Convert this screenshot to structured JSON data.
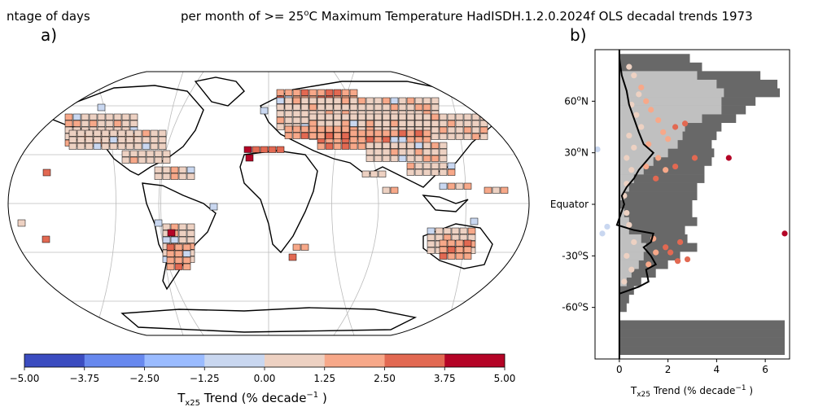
{
  "title_left": "ntage of days",
  "title_right": "per month of >= 25",
  "title_sup": "o",
  "title_rest": "C Maximum Temperature HadISDH.1.2.0.2024f OLS decadal trends 1973",
  "panel_a_label": "a)",
  "panel_b_label": "b)",
  "colorbar": {
    "label_main": "T",
    "label_sub": "x25",
    "label_rest": " Trend (% decade",
    "label_sup": "−1",
    "label_end": " )",
    "tick_labels": [
      "−5.00",
      "−3.75",
      "−2.50",
      "−1.25",
      "0.00",
      "1.25",
      "2.50",
      "3.75",
      "5.00"
    ],
    "colors": [
      "#3b4cc0",
      "#6788ee",
      "#9abbff",
      "#c9d7f0",
      "#edd1c2",
      "#f7a889",
      "#e26952",
      "#b40426"
    ]
  },
  "chart_data": [
    {
      "type": "map",
      "description_values": "Gridded decadal trends of days >= 25C max temperature; land boxes shaded by trend bin",
      "value_range": [
        -5.0,
        5.0
      ],
      "bins": [
        -5.0,
        -3.75,
        -2.5,
        -1.25,
        0.0,
        1.25,
        2.5,
        3.75,
        5.0
      ]
    },
    {
      "type": "scatter",
      "xlabel_main": "T",
      "xlabel_sub": "x25",
      "xlabel_rest": " Trend (% decade",
      "xlabel_sup": "−1",
      "xlabel_end": " )",
      "xlim": [
        -1,
        7
      ],
      "ylim": [
        -90,
        90
      ],
      "x_ticks": [
        0,
        2,
        4,
        6
      ],
      "x_tick_labels": [
        "0",
        "2",
        "4",
        "6"
      ],
      "y_ticks": [
        60,
        30,
        0,
        -30,
        -60
      ],
      "y_tick_labels": [
        {
          "num": "60",
          "sup": "o",
          "suf": "N"
        },
        {
          "num": "30",
          "sup": "o",
          "suf": "N"
        },
        {
          "num": "Equator",
          "sup": "",
          "suf": ""
        },
        {
          "num": "-30",
          "sup": "o",
          "suf": "S"
        },
        {
          "num": "-60",
          "sup": "o",
          "suf": "S"
        }
      ],
      "coverage_dark": [
        {
          "lat": 85,
          "x": 2.9
        },
        {
          "lat": 80,
          "x": 3.4
        },
        {
          "lat": 75,
          "x": 5.8
        },
        {
          "lat": 70,
          "x": 6.5
        },
        {
          "lat": 65,
          "x": 6.6
        },
        {
          "lat": 60,
          "x": 5.6
        },
        {
          "lat": 55,
          "x": 5.2
        },
        {
          "lat": 50,
          "x": 4.8
        },
        {
          "lat": 45,
          "x": 4.2
        },
        {
          "lat": 40,
          "x": 4.0
        },
        {
          "lat": 35,
          "x": 3.8
        },
        {
          "lat": 30,
          "x": 3.9
        },
        {
          "lat": 25,
          "x": 3.8
        },
        {
          "lat": 20,
          "x": 3.5
        },
        {
          "lat": 15,
          "x": 3.5
        },
        {
          "lat": 10,
          "x": 3.2
        },
        {
          "lat": 5,
          "x": 3.2
        },
        {
          "lat": 0,
          "x": 3.0
        },
        {
          "lat": -5,
          "x": 3.0
        },
        {
          "lat": -10,
          "x": 3.2
        },
        {
          "lat": -15,
          "x": 2.7
        },
        {
          "lat": -20,
          "x": 2.8
        },
        {
          "lat": -25,
          "x": 3.2
        },
        {
          "lat": -30,
          "x": 2.5
        },
        {
          "lat": -35,
          "x": 2.0
        },
        {
          "lat": -40,
          "x": 1.5
        },
        {
          "lat": -45,
          "x": 0.9
        },
        {
          "lat": -50,
          "x": 0.6
        },
        {
          "lat": -55,
          "x": 0.4
        },
        {
          "lat": -60,
          "x": 0.3
        },
        {
          "lat": -65,
          "x": 0.0
        },
        {
          "lat": -70,
          "x": 6.8
        },
        {
          "lat": -75,
          "x": 6.8
        },
        {
          "lat": -80,
          "x": 6.8
        },
        {
          "lat": -85,
          "x": 6.8
        }
      ],
      "coverage_light": [
        {
          "lat": 75,
          "x": 3.2
        },
        {
          "lat": 70,
          "x": 4.0
        },
        {
          "lat": 65,
          "x": 4.3
        },
        {
          "lat": 60,
          "x": 4.2
        },
        {
          "lat": 55,
          "x": 4.2
        },
        {
          "lat": 50,
          "x": 3.4
        },
        {
          "lat": 45,
          "x": 2.7
        },
        {
          "lat": 40,
          "x": 2.6
        },
        {
          "lat": 35,
          "x": 2.4
        },
        {
          "lat": 30,
          "x": 2.0
        },
        {
          "lat": 25,
          "x": 1.4
        },
        {
          "lat": 20,
          "x": 1.0
        },
        {
          "lat": 15,
          "x": 0.6
        },
        {
          "lat": 10,
          "x": 0.4
        },
        {
          "lat": 5,
          "x": 0.2
        },
        {
          "lat": -5,
          "x": 0.2
        },
        {
          "lat": -10,
          "x": 0.4
        },
        {
          "lat": -15,
          "x": 0.4
        },
        {
          "lat": -20,
          "x": 0.9
        },
        {
          "lat": -25,
          "x": 1.1
        },
        {
          "lat": -30,
          "x": 1.0
        },
        {
          "lat": -35,
          "x": 0.8
        },
        {
          "lat": -40,
          "x": 0.5
        },
        {
          "lat": -45,
          "x": 0.3
        }
      ],
      "points": [
        {
          "x": -0.9,
          "y": 32,
          "c": "#c9d7f0"
        },
        {
          "x": -0.5,
          "y": -13,
          "c": "#c9d7f0"
        },
        {
          "x": -0.7,
          "y": -17,
          "c": "#c9d7f0"
        },
        {
          "x": 4.5,
          "y": 27,
          "c": "#b40426"
        },
        {
          "x": 6.8,
          "y": -17,
          "c": "#b40426"
        },
        {
          "x": 2.7,
          "y": 47,
          "c": "#e26952"
        },
        {
          "x": 2.3,
          "y": 45,
          "c": "#e26952"
        },
        {
          "x": 3.1,
          "y": 27,
          "c": "#e26952"
        },
        {
          "x": 2.3,
          "y": 22,
          "c": "#e26952"
        },
        {
          "x": 2.5,
          "y": -22,
          "c": "#e26952"
        },
        {
          "x": 2.1,
          "y": -28,
          "c": "#e26952"
        },
        {
          "x": 2.8,
          "y": -32,
          "c": "#e26952"
        },
        {
          "x": 2.4,
          "y": -33,
          "c": "#e26952"
        },
        {
          "x": 1.9,
          "y": -25,
          "c": "#e26952"
        },
        {
          "x": 1.5,
          "y": 15,
          "c": "#e26952"
        },
        {
          "x": 2.0,
          "y": 38,
          "c": "#f7a889"
        },
        {
          "x": 1.8,
          "y": 42,
          "c": "#f7a889"
        },
        {
          "x": 1.3,
          "y": 55,
          "c": "#f7a889"
        },
        {
          "x": 1.6,
          "y": 49,
          "c": "#f7a889"
        },
        {
          "x": 1.1,
          "y": 60,
          "c": "#f7a889"
        },
        {
          "x": 0.9,
          "y": 68,
          "c": "#f7a889"
        },
        {
          "x": 1.2,
          "y": 35,
          "c": "#f7a889"
        },
        {
          "x": 1.6,
          "y": 27,
          "c": "#f7a889"
        },
        {
          "x": 1.9,
          "y": 20,
          "c": "#f7a889"
        },
        {
          "x": 1.1,
          "y": 22,
          "c": "#f7a889"
        },
        {
          "x": 1.4,
          "y": -20,
          "c": "#f7a889"
        },
        {
          "x": 1.5,
          "y": -28,
          "c": "#f7a889"
        },
        {
          "x": 1.2,
          "y": -35,
          "c": "#f7a889"
        },
        {
          "x": 0.6,
          "y": 75,
          "c": "#edd1c2"
        },
        {
          "x": 0.4,
          "y": 80,
          "c": "#edd1c2"
        },
        {
          "x": 0.8,
          "y": 64,
          "c": "#edd1c2"
        },
        {
          "x": 0.5,
          "y": 58,
          "c": "#edd1c2"
        },
        {
          "x": 0.7,
          "y": 52,
          "c": "#edd1c2"
        },
        {
          "x": 0.9,
          "y": 45,
          "c": "#edd1c2"
        },
        {
          "x": 0.4,
          "y": 40,
          "c": "#edd1c2"
        },
        {
          "x": 0.6,
          "y": 33,
          "c": "#edd1c2"
        },
        {
          "x": 0.3,
          "y": 27,
          "c": "#edd1c2"
        },
        {
          "x": 0.5,
          "y": 20,
          "c": "#edd1c2"
        },
        {
          "x": 0.3,
          "y": 12,
          "c": "#edd1c2"
        },
        {
          "x": 0.2,
          "y": 5,
          "c": "#edd1c2"
        },
        {
          "x": 0.3,
          "y": -5,
          "c": "#edd1c2"
        },
        {
          "x": 0.4,
          "y": -12,
          "c": "#edd1c2"
        },
        {
          "x": 0.6,
          "y": -22,
          "c": "#edd1c2"
        },
        {
          "x": 0.3,
          "y": -30,
          "c": "#edd1c2"
        },
        {
          "x": 0.5,
          "y": -38,
          "c": "#edd1c2"
        },
        {
          "x": 0.2,
          "y": -45,
          "c": "#edd1c2"
        }
      ],
      "mean_line": [
        {
          "x": 0.0,
          "y": 85
        },
        {
          "x": 0.1,
          "y": 75
        },
        {
          "x": 0.3,
          "y": 66
        },
        {
          "x": 0.4,
          "y": 58
        },
        {
          "x": 0.6,
          "y": 50
        },
        {
          "x": 0.8,
          "y": 42
        },
        {
          "x": 1.0,
          "y": 35
        },
        {
          "x": 1.4,
          "y": 30
        },
        {
          "x": 1.1,
          "y": 25
        },
        {
          "x": 0.8,
          "y": 20
        },
        {
          "x": 0.6,
          "y": 15
        },
        {
          "x": 0.3,
          "y": 10
        },
        {
          "x": 0.1,
          "y": 5
        },
        {
          "x": 0.2,
          "y": 0
        },
        {
          "x": -0.1,
          "y": -12
        },
        {
          "x": 0.6,
          "y": -15
        },
        {
          "x": 1.4,
          "y": -17
        },
        {
          "x": 1.3,
          "y": -22
        },
        {
          "x": 1.0,
          "y": -25
        },
        {
          "x": 1.3,
          "y": -30
        },
        {
          "x": 1.5,
          "y": -35
        },
        {
          "x": 1.1,
          "y": -38
        },
        {
          "x": 1.2,
          "y": -45
        },
        {
          "x": 0.8,
          "y": -48
        },
        {
          "x": 0.0,
          "y": -52
        }
      ]
    }
  ]
}
